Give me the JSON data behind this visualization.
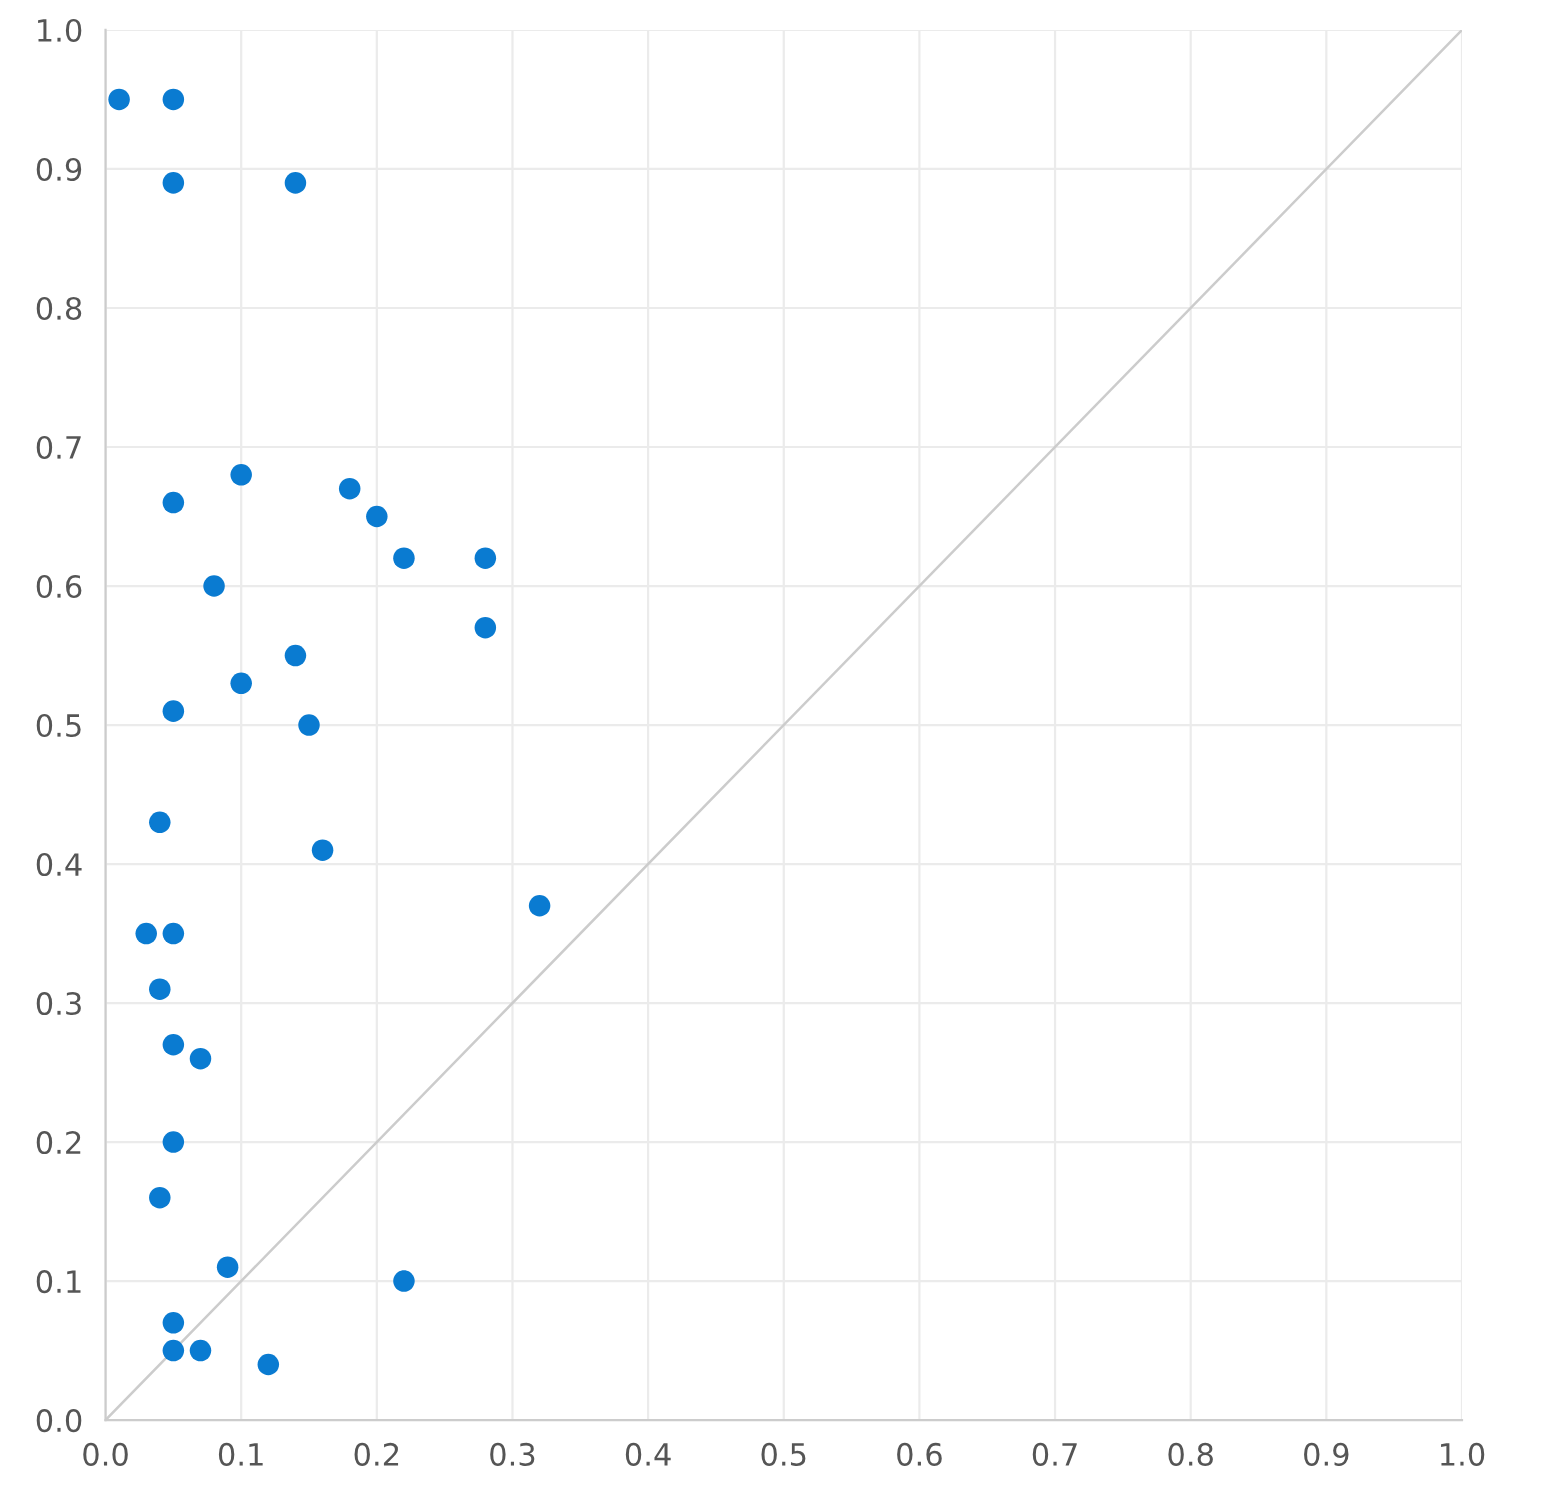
{
  "chart_data": {
    "type": "scatter",
    "x": [
      0.01,
      0.05,
      0.05,
      0.14,
      0.1,
      0.05,
      0.18,
      0.2,
      0.22,
      0.28,
      0.08,
      0.28,
      0.14,
      0.1,
      0.05,
      0.15,
      0.04,
      0.16,
      0.32,
      0.03,
      0.05,
      0.04,
      0.05,
      0.07,
      0.05,
      0.04,
      0.09,
      0.22,
      0.05,
      0.05,
      0.07,
      0.12
    ],
    "series": [
      {
        "color": "#0a7bd1",
        "marker": "circle",
        "values": [
          0.95,
          0.95,
          0.89,
          0.89,
          0.68,
          0.66,
          0.67,
          0.65,
          0.62,
          0.62,
          0.6,
          0.57,
          0.55,
          0.53,
          0.51,
          0.5,
          0.43,
          0.41,
          0.37,
          0.35,
          0.35,
          0.31,
          0.27,
          0.26,
          0.2,
          0.16,
          0.11,
          0.1,
          0.07,
          0.05,
          0.05,
          0.04
        ]
      },
      {
        "type": "line",
        "marker": "none",
        "color": "#cccccc",
        "x": [
          0,
          1
        ],
        "values": [
          0,
          1
        ]
      }
    ],
    "xlim": [
      0,
      1
    ],
    "ylim": [
      0,
      1
    ],
    "xticks": [
      {
        "value": 0,
        "label": "0.0"
      },
      0.1,
      0.2,
      0.3,
      0.4,
      0.5,
      0.6,
      0.7,
      0.8,
      0.9,
      {
        "value": 1,
        "label": "1.0"
      }
    ],
    "yticks": [
      {
        "value": 0,
        "label": "0.0"
      },
      0.1,
      0.2,
      0.3,
      0.4,
      0.5,
      0.6,
      0.7,
      0.8,
      0.9,
      {
        "value": 1,
        "label": "1.0"
      }
    ],
    "grid": true
  }
}
